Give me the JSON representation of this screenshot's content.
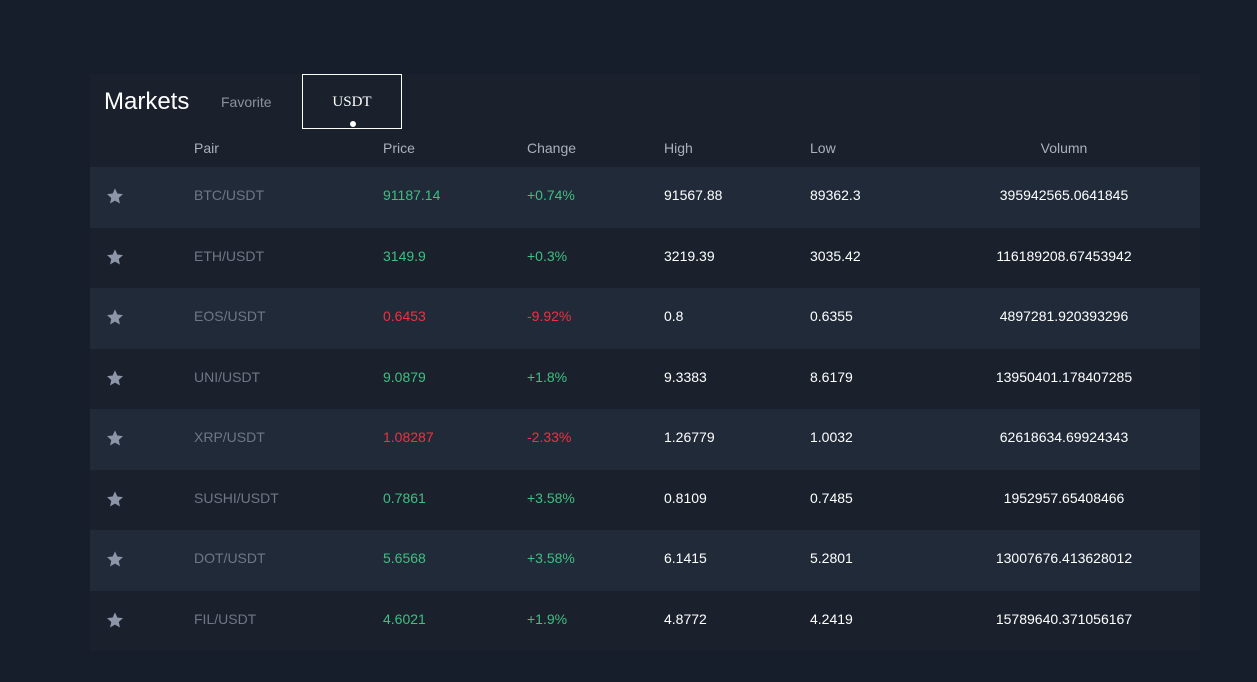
{
  "header": {
    "title": "Markets",
    "tabs": [
      {
        "label": "Favorite",
        "active": false
      },
      {
        "label": "USDT",
        "active": true
      }
    ]
  },
  "columns": {
    "pair": "Pair",
    "price": "Price",
    "change": "Change",
    "high": "High",
    "low": "Low",
    "volume": "Volumn"
  },
  "colors": {
    "background": "#161e2b",
    "panel": "#1a212c",
    "row_alt": "#202a39",
    "up": "#3fbf80",
    "down": "#f0313f",
    "star": "#8d95a8"
  },
  "rows": [
    {
      "pair": "BTC/USDT",
      "price": "91187.14",
      "change": "+0.74%",
      "high": "91567.88",
      "low": "89362.3",
      "volume": "395942565.0641845",
      "direction": "up",
      "icon": "star-icon"
    },
    {
      "pair": "ETH/USDT",
      "price": "3149.9",
      "change": "+0.3%",
      "high": "3219.39",
      "low": "3035.42",
      "volume": "116189208.67453942",
      "direction": "up",
      "icon": "star-icon"
    },
    {
      "pair": "EOS/USDT",
      "price": "0.6453",
      "change": "-9.92%",
      "high": "0.8",
      "low": "0.6355",
      "volume": "4897281.920393296",
      "direction": "down",
      "icon": "star-icon"
    },
    {
      "pair": "UNI/USDT",
      "price": "9.0879",
      "change": "+1.8%",
      "high": "9.3383",
      "low": "8.6179",
      "volume": "13950401.178407285",
      "direction": "up",
      "icon": "star-icon"
    },
    {
      "pair": "XRP/USDT",
      "price": "1.08287",
      "change": "-2.33%",
      "high": "1.26779",
      "low": "1.0032",
      "volume": "62618634.69924343",
      "direction": "down",
      "icon": "star-icon"
    },
    {
      "pair": "SUSHI/USDT",
      "price": "0.7861",
      "change": "+3.58%",
      "high": "0.8109",
      "low": "0.7485",
      "volume": "1952957.65408466",
      "direction": "up",
      "icon": "star-icon"
    },
    {
      "pair": "DOT/USDT",
      "price": "5.6568",
      "change": "+3.58%",
      "high": "6.1415",
      "low": "5.2801",
      "volume": "13007676.413628012",
      "direction": "up",
      "icon": "star-icon"
    },
    {
      "pair": "FIL/USDT",
      "price": "4.6021",
      "change": "+1.9%",
      "high": "4.8772",
      "low": "4.2419",
      "volume": "15789640.371056167",
      "direction": "up",
      "icon": "star-icon"
    }
  ]
}
